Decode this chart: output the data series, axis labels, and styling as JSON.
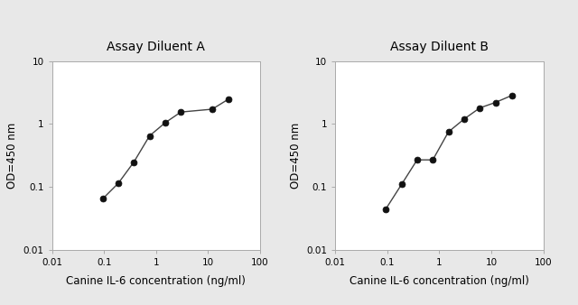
{
  "chart_a": {
    "title": "Assay Diluent A",
    "x": [
      0.094,
      0.188,
      0.375,
      0.75,
      1.5,
      3.0,
      12.0,
      25.0
    ],
    "y": [
      0.065,
      0.115,
      0.25,
      0.65,
      1.05,
      1.55,
      1.72,
      2.5
    ]
  },
  "chart_b": {
    "title": "Assay Diluent B",
    "x": [
      0.094,
      0.188,
      0.375,
      0.75,
      1.5,
      3.0,
      6.0,
      12.0,
      25.0
    ],
    "y": [
      0.045,
      0.11,
      0.27,
      0.27,
      0.75,
      1.2,
      1.8,
      2.2,
      2.85
    ]
  },
  "xlabel": "Canine IL-6 concentration (ng/ml)",
  "ylabel": "OD=450 nm",
  "xlim": [
    0.01,
    100
  ],
  "ylim": [
    0.01,
    10
  ],
  "line_color": "#444444",
  "marker_color": "#111111",
  "marker_size": 5,
  "bg_color": "#e8e8e8",
  "axes_bg_color": "#ffffff",
  "title_fontsize": 10,
  "label_fontsize": 8.5,
  "tick_fontsize": 7.5,
  "spine_color": "#aaaaaa"
}
